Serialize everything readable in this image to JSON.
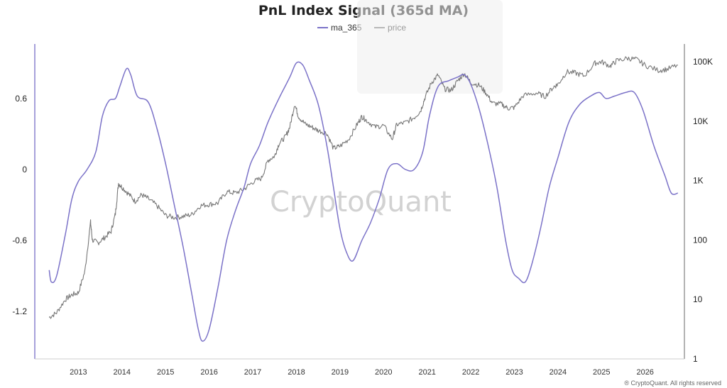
{
  "chart_data": {
    "type": "line",
    "title": "PnL Index Signal (365d MA)",
    "legend_position": "top-center",
    "grid": false,
    "series": [
      {
        "name": "ma_365",
        "axis": "left",
        "color": "#7b72c8",
        "points": [
          [
            2012.33,
            -0.85
          ],
          [
            2012.38,
            -0.95
          ],
          [
            2012.5,
            -0.9
          ],
          [
            2012.7,
            -0.55
          ],
          [
            2012.85,
            -0.25
          ],
          [
            2013.0,
            -0.1
          ],
          [
            2013.2,
            0.0
          ],
          [
            2013.4,
            0.15
          ],
          [
            2013.55,
            0.45
          ],
          [
            2013.7,
            0.58
          ],
          [
            2013.85,
            0.6
          ],
          [
            2013.95,
            0.7
          ],
          [
            2014.1,
            0.85
          ],
          [
            2014.2,
            0.8
          ],
          [
            2014.35,
            0.62
          ],
          [
            2014.6,
            0.57
          ],
          [
            2014.8,
            0.35
          ],
          [
            2015.0,
            0.05
          ],
          [
            2015.2,
            -0.3
          ],
          [
            2015.4,
            -0.65
          ],
          [
            2015.6,
            -1.05
          ],
          [
            2015.75,
            -1.35
          ],
          [
            2015.85,
            -1.45
          ],
          [
            2016.0,
            -1.35
          ],
          [
            2016.2,
            -1.0
          ],
          [
            2016.4,
            -0.6
          ],
          [
            2016.6,
            -0.35
          ],
          [
            2016.8,
            -0.15
          ],
          [
            2016.95,
            0.05
          ],
          [
            2017.15,
            0.2
          ],
          [
            2017.35,
            0.4
          ],
          [
            2017.6,
            0.6
          ],
          [
            2017.85,
            0.78
          ],
          [
            2018.0,
            0.9
          ],
          [
            2018.15,
            0.88
          ],
          [
            2018.3,
            0.75
          ],
          [
            2018.5,
            0.55
          ],
          [
            2018.7,
            0.2
          ],
          [
            2018.85,
            -0.15
          ],
          [
            2019.0,
            -0.5
          ],
          [
            2019.15,
            -0.7
          ],
          [
            2019.3,
            -0.77
          ],
          [
            2019.5,
            -0.6
          ],
          [
            2019.7,
            -0.45
          ],
          [
            2019.9,
            -0.25
          ],
          [
            2020.1,
            0.0
          ],
          [
            2020.3,
            0.05
          ],
          [
            2020.5,
            0.0
          ],
          [
            2020.7,
            0.0
          ],
          [
            2020.9,
            0.15
          ],
          [
            2021.05,
            0.45
          ],
          [
            2021.25,
            0.7
          ],
          [
            2021.5,
            0.75
          ],
          [
            2021.7,
            0.78
          ],
          [
            2021.85,
            0.8
          ],
          [
            2022.0,
            0.72
          ],
          [
            2022.2,
            0.5
          ],
          [
            2022.4,
            0.2
          ],
          [
            2022.6,
            -0.15
          ],
          [
            2022.8,
            -0.6
          ],
          [
            2022.95,
            -0.85
          ],
          [
            2023.1,
            -0.92
          ],
          [
            2023.25,
            -0.95
          ],
          [
            2023.4,
            -0.8
          ],
          [
            2023.6,
            -0.5
          ],
          [
            2023.8,
            -0.15
          ],
          [
            2024.0,
            0.1
          ],
          [
            2024.25,
            0.4
          ],
          [
            2024.5,
            0.55
          ],
          [
            2024.75,
            0.62
          ],
          [
            2024.95,
            0.65
          ],
          [
            2025.1,
            0.6
          ],
          [
            2025.3,
            0.62
          ],
          [
            2025.55,
            0.65
          ],
          [
            2025.75,
            0.65
          ],
          [
            2025.95,
            0.5
          ],
          [
            2026.2,
            0.2
          ],
          [
            2026.45,
            -0.05
          ],
          [
            2026.6,
            -0.2
          ],
          [
            2026.75,
            -0.2
          ]
        ]
      },
      {
        "name": "price",
        "axis": "right",
        "color": "#777777",
        "points": [
          [
            2012.33,
            5
          ],
          [
            2012.5,
            6
          ],
          [
            2012.7,
            10
          ],
          [
            2012.85,
            12
          ],
          [
            2013.0,
            13
          ],
          [
            2013.15,
            30
          ],
          [
            2013.28,
            200
          ],
          [
            2013.32,
            100
          ],
          [
            2013.45,
            90
          ],
          [
            2013.6,
            110
          ],
          [
            2013.75,
            140
          ],
          [
            2013.85,
            280
          ],
          [
            2013.92,
            900
          ],
          [
            2014.0,
            780
          ],
          [
            2014.15,
            600
          ],
          [
            2014.3,
            450
          ],
          [
            2014.45,
            580
          ],
          [
            2014.6,
            500
          ],
          [
            2014.8,
            380
          ],
          [
            2015.0,
            260
          ],
          [
            2015.2,
            240
          ],
          [
            2015.4,
            250
          ],
          [
            2015.6,
            270
          ],
          [
            2015.8,
            380
          ],
          [
            2016.0,
            400
          ],
          [
            2016.2,
            420
          ],
          [
            2016.4,
            650
          ],
          [
            2016.6,
            620
          ],
          [
            2016.8,
            720
          ],
          [
            2017.0,
            950
          ],
          [
            2017.2,
            1100
          ],
          [
            2017.35,
            2200
          ],
          [
            2017.5,
            2600
          ],
          [
            2017.6,
            4200
          ],
          [
            2017.75,
            5500
          ],
          [
            2017.85,
            8000
          ],
          [
            2017.96,
            19500
          ],
          [
            2018.05,
            12000
          ],
          [
            2018.2,
            9000
          ],
          [
            2018.35,
            8000
          ],
          [
            2018.5,
            7000
          ],
          [
            2018.7,
            6300
          ],
          [
            2018.85,
            3500
          ],
          [
            2019.0,
            3800
          ],
          [
            2019.2,
            5000
          ],
          [
            2019.4,
            9000
          ],
          [
            2019.5,
            12000
          ],
          [
            2019.6,
            10500
          ],
          [
            2019.8,
            8000
          ],
          [
            2020.0,
            8500
          ],
          [
            2020.2,
            5000
          ],
          [
            2020.3,
            8800
          ],
          [
            2020.5,
            9500
          ],
          [
            2020.7,
            11500
          ],
          [
            2020.85,
            15000
          ],
          [
            2020.95,
            25000
          ],
          [
            2021.1,
            45000
          ],
          [
            2021.25,
            60000
          ],
          [
            2021.4,
            35000
          ],
          [
            2021.55,
            33000
          ],
          [
            2021.7,
            48000
          ],
          [
            2021.85,
            64000
          ],
          [
            2022.0,
            45000
          ],
          [
            2022.2,
            40000
          ],
          [
            2022.35,
            30000
          ],
          [
            2022.5,
            20000
          ],
          [
            2022.7,
            19500
          ],
          [
            2022.85,
            16500
          ],
          [
            2023.0,
            17000
          ],
          [
            2023.2,
            27000
          ],
          [
            2023.5,
            30000
          ],
          [
            2023.7,
            26000
          ],
          [
            2023.9,
            38000
          ],
          [
            2024.0,
            42000
          ],
          [
            2024.2,
            68000
          ],
          [
            2024.4,
            65000
          ],
          [
            2024.6,
            58000
          ],
          [
            2024.85,
            95000
          ],
          [
            2025.0,
            100000
          ],
          [
            2025.2,
            85000
          ],
          [
            2025.35,
            105000
          ],
          [
            2025.6,
            115000
          ],
          [
            2025.8,
            110000
          ],
          [
            2026.0,
            88000
          ],
          [
            2026.3,
            72000
          ],
          [
            2026.5,
            75000
          ],
          [
            2026.75,
            88000
          ]
        ]
      }
    ],
    "x_axis": {
      "range": [
        2012.0,
        2026.9
      ],
      "tick_labels": [
        "2013",
        "2014",
        "2015",
        "2016",
        "2017",
        "2018",
        "2019",
        "2020",
        "2021",
        "2022",
        "2023",
        "2024",
        "2025",
        "2026"
      ]
    },
    "y_left": {
      "range": [
        -1.6,
        1.06
      ],
      "tick_labels": [
        "0.6",
        "0",
        "-0.6",
        "-1.2"
      ]
    },
    "y_right": {
      "scale": "log",
      "range": [
        1,
        200000
      ],
      "tick_labels": [
        "100K",
        "10K",
        "1K",
        "100",
        "10",
        "1"
      ]
    },
    "watermark": "CryptoQuant",
    "credit": "® CryptoQuant. All rights reserved"
  }
}
